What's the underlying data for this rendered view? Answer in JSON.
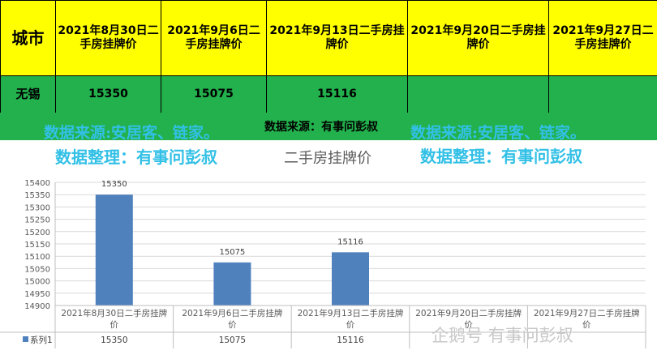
{
  "table": {
    "header": {
      "city": "城市",
      "dates": [
        "2021年8月30日二手房挂牌价",
        "2021年9月6日二手房挂牌价",
        "2021年9月13日二手房挂牌价",
        "2021年9月20日二手房挂牌价",
        "2021年9月27日二手房挂牌价"
      ]
    },
    "row": {
      "city": "无锡",
      "values": [
        "15350",
        "15075",
        "15116",
        "",
        ""
      ]
    }
  },
  "watermarks": {
    "source_left": "数据来源:安居客、链家。",
    "source_center": "数据来源：有事问彭叔",
    "source_right": "数据来源:安居客、链家。",
    "organizer_left": "数据整理：有事问彭叔",
    "organizer_right": "数据整理：有事问彭叔",
    "footer": "企鹅号 有事问彭叔"
  },
  "colors": {
    "header_bg": "#ffff00",
    "row_bg": "#22b14c",
    "bar": "#4f81bd",
    "watermark": "#32c0e6"
  },
  "chart_data": {
    "type": "bar",
    "title": "二手房挂牌价",
    "categories": [
      "2021年8月30日二手房挂牌价",
      "2021年9月6日二手房挂牌价",
      "2021年9月13日二手房挂牌价",
      "2021年9月20日二手房挂牌价",
      "2021年9月27日二手房挂牌价"
    ],
    "series": [
      {
        "name": "系列1",
        "values": [
          15350,
          15075,
          15116,
          null,
          null
        ]
      }
    ],
    "data_labels": [
      "15350",
      "15075",
      "15116",
      "",
      ""
    ],
    "y_ticks": [
      14900,
      14950,
      15000,
      15050,
      15100,
      15150,
      15200,
      15250,
      15300,
      15350,
      15400
    ],
    "ylim": [
      14900,
      15400
    ],
    "grid": true,
    "legend": "data-table"
  }
}
